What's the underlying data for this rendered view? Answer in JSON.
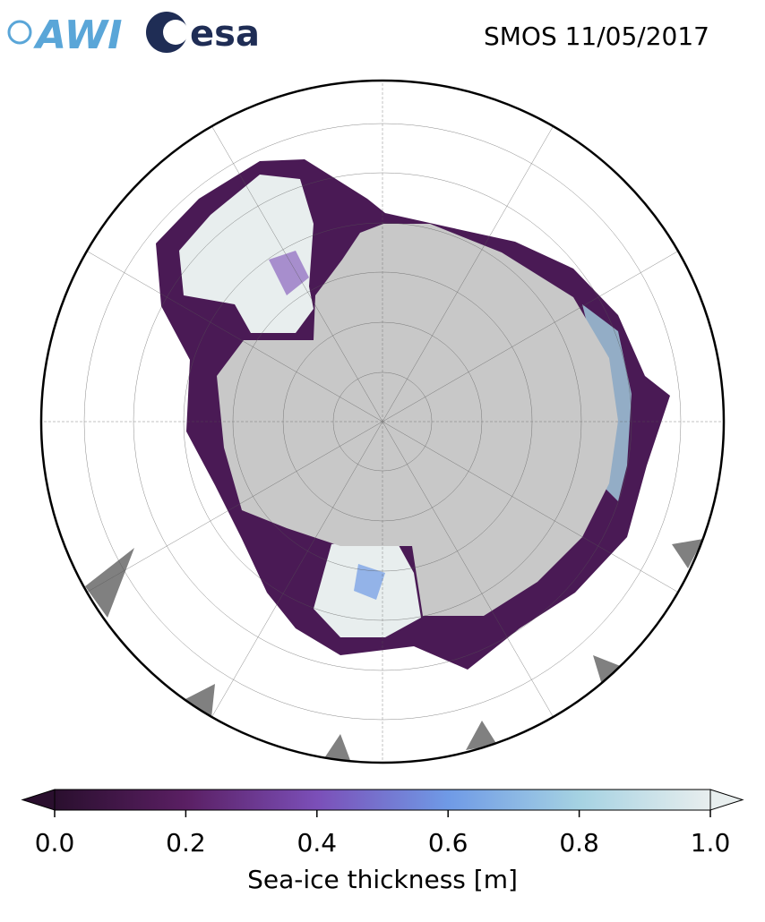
{
  "header": {
    "logos": [
      "AWI",
      "esa"
    ],
    "title": "SMOS 11/05/2017"
  },
  "colorbar": {
    "label": "Sea-ice thickness [m]",
    "lim": [
      0,
      1
    ],
    "ticks": [
      {
        "value": 0,
        "label": "0.0"
      },
      {
        "value": 0.2,
        "label": "0.2"
      },
      {
        "value": 0.4,
        "label": "0.4"
      },
      {
        "value": 0.6,
        "label": "0.6"
      },
      {
        "value": 0.8,
        "label": "0.8"
      },
      {
        "value": 1,
        "label": "1.0"
      }
    ],
    "colors": [
      "#2a0f2e",
      "#5a1f63",
      "#7b4fb8",
      "#6f9ae6",
      "#a5d2e2",
      "#e8eeee"
    ]
  }
}
